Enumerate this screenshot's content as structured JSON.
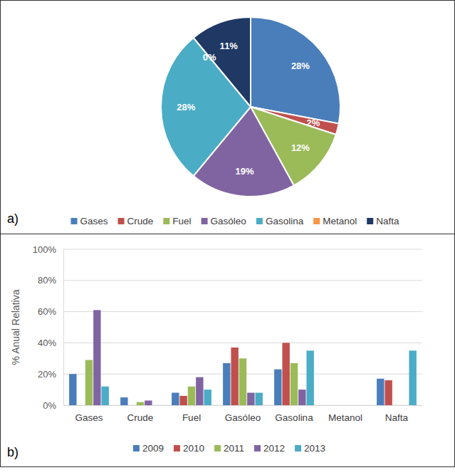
{
  "chart_data": [
    {
      "type": "pie",
      "title": "a)",
      "categories": [
        "Gases",
        "Crude",
        "Fuel",
        "Gasóleo",
        "Gasolina",
        "Metanol",
        "Nafta"
      ],
      "values": [
        28,
        2,
        12,
        19,
        28,
        0,
        11
      ],
      "value_labels": [
        "28%",
        "2%",
        "12%",
        "19%",
        "28%",
        "0%",
        "11%"
      ],
      "colors": [
        "#4a7ebb",
        "#c0504d",
        "#9bbb59",
        "#8064a2",
        "#4bacc6",
        "#f79646",
        "#1f3864"
      ],
      "data_labels": true,
      "legend": "bottom"
    },
    {
      "type": "bar",
      "title": "b)",
      "y_label": "% Anual Relativa",
      "categories": [
        "Gases",
        "Crude",
        "Fuel",
        "Gasóleo",
        "Gasolina",
        "Metanol",
        "Nafta"
      ],
      "series": [
        {
          "name": "2009",
          "color": "#4a7ebb",
          "values": [
            20,
            5,
            8,
            27,
            23,
            0,
            17
          ]
        },
        {
          "name": "2010",
          "color": "#c0504d",
          "values": [
            0,
            0,
            6,
            37,
            40,
            0,
            16
          ]
        },
        {
          "name": "2011",
          "color": "#9bbb59",
          "values": [
            29,
            2,
            12,
            30,
            27,
            0,
            0
          ]
        },
        {
          "name": "2012",
          "color": "#8064a2",
          "values": [
            61,
            3,
            18,
            8,
            10,
            0,
            0
          ]
        },
        {
          "name": "2013",
          "color": "#4bacc6",
          "values": [
            12,
            0,
            10,
            8,
            35,
            0,
            35
          ]
        }
      ],
      "ylim": [
        0,
        100
      ],
      "yticks": [
        {
          "value": 0,
          "label": "0%"
        },
        {
          "value": 20,
          "label": "20%"
        },
        {
          "value": 40,
          "label": "40%"
        },
        {
          "value": 60,
          "label": "60%"
        },
        {
          "value": 80,
          "label": "80%"
        },
        {
          "value": 100,
          "label": "100%"
        }
      ],
      "grid": true,
      "legend": "bottom"
    }
  ]
}
